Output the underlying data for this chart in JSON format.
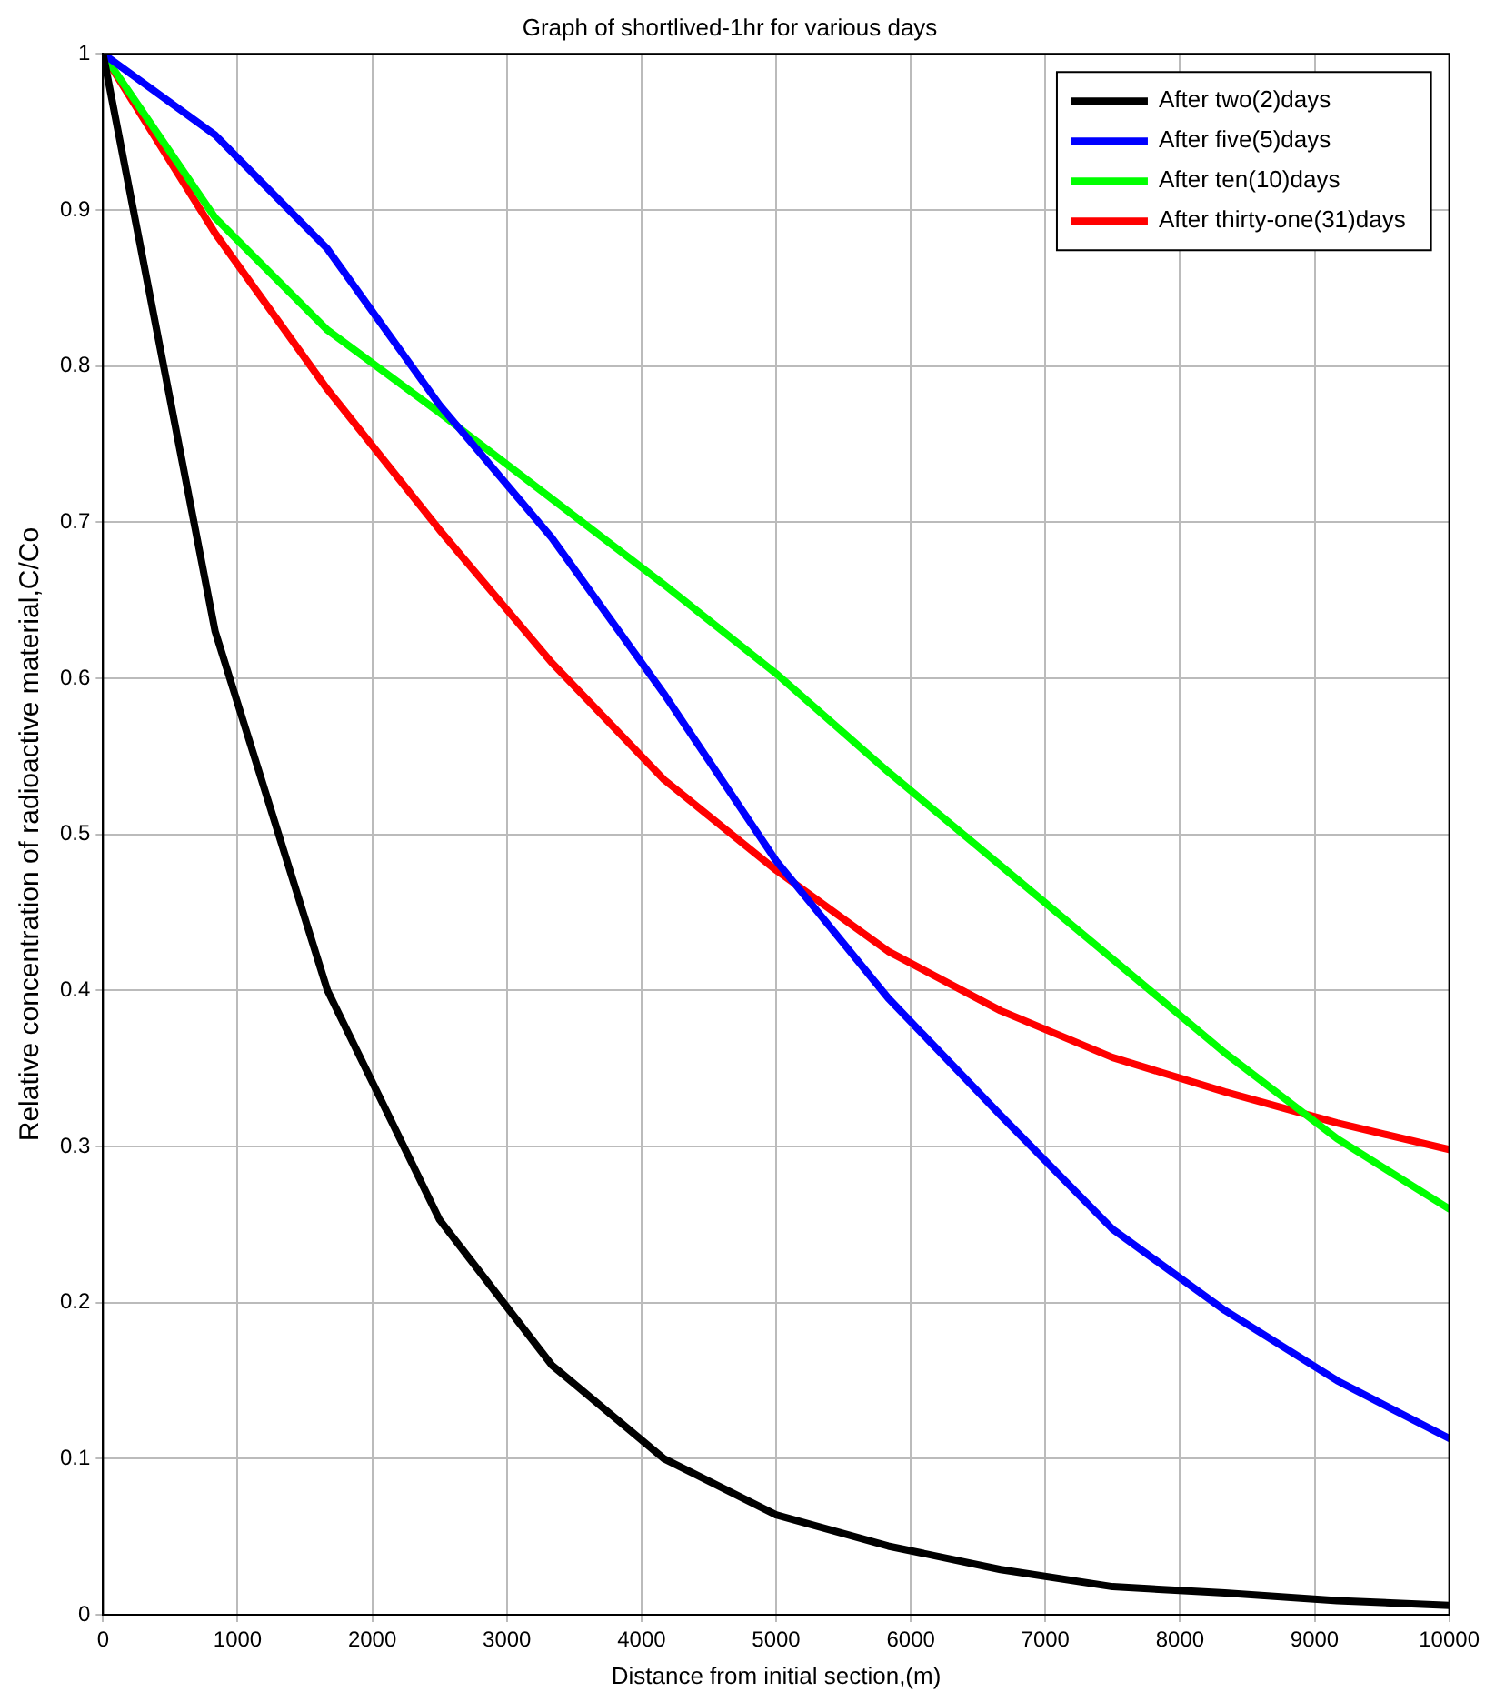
{
  "chart_data": {
    "type": "line",
    "title": "Graph of shortlived-1hr for various days",
    "xlabel": "Distance from initial section,(m)",
    "ylabel": "Relative concentration of radioactive material,C/Co",
    "x": [
      0,
      833,
      1667,
      2500,
      3333,
      4167,
      5000,
      5833,
      6667,
      7500,
      8333,
      9167,
      10000
    ],
    "series": [
      {
        "name": "After two(2)days",
        "color": "#000000",
        "values": [
          1,
          0.63,
          0.4,
          0.253,
          0.16,
          0.1,
          0.064,
          0.044,
          0.029,
          0.018,
          0.014,
          0.009,
          0.006
        ]
      },
      {
        "name": "After five(5)days",
        "color": "#0000ff",
        "values": [
          1,
          0.948,
          0.875,
          0.775,
          0.69,
          0.59,
          0.483,
          0.395,
          0.32,
          0.247,
          0.195,
          0.15,
          0.113
        ]
      },
      {
        "name": "After ten(10)days",
        "color": "#00ff00",
        "values": [
          1,
          0.895,
          0.823,
          0.77,
          0.715,
          0.66,
          0.603,
          0.54,
          0.48,
          0.42,
          0.36,
          0.305,
          0.26
        ]
      },
      {
        "name": "After thirty-one(31)days",
        "color": "#ff0000",
        "values": [
          1,
          0.885,
          0.785,
          0.695,
          0.61,
          0.535,
          0.477,
          0.425,
          0.387,
          0.357,
          0.335,
          0.315,
          0.298
        ]
      }
    ],
    "xlim": [
      0,
      10000
    ],
    "xticks": [
      0,
      1000,
      2000,
      3000,
      4000,
      5000,
      6000,
      7000,
      8000,
      9000,
      10000
    ],
    "ylim": [
      0,
      1
    ],
    "yticks": [
      0,
      0.1,
      0.2,
      0.3,
      0.4,
      0.5,
      0.6,
      0.7,
      0.8,
      0.9,
      1
    ],
    "grid": true,
    "legend": "top right",
    "marker": "none",
    "line_style": "solid"
  }
}
